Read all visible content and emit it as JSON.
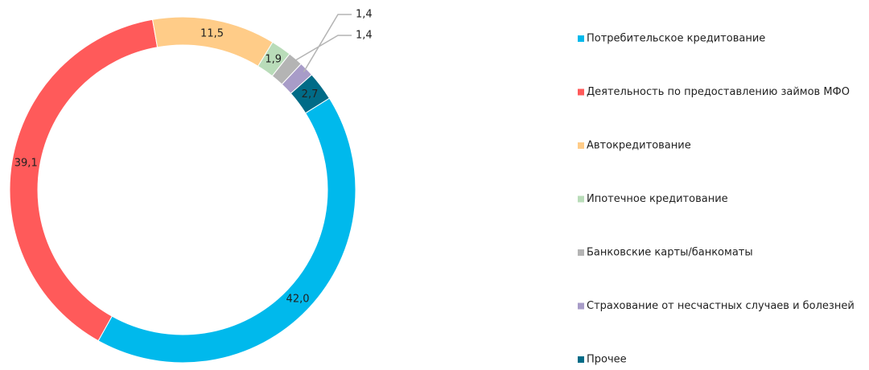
{
  "chart_data": {
    "type": "donut",
    "categories": [
      "Потребительское кредитование",
      "Деятельность по предоставлению займов МФО",
      "Автокредитование",
      "Ипотечное кредитование",
      "Банковские карты/банкоматы",
      "Страхование от несчастных случаев и болезней",
      "Прочее"
    ],
    "values": [
      42.0,
      39.1,
      11.5,
      1.9,
      1.4,
      1.4,
      2.7
    ],
    "value_labels": [
      "42,0",
      "39,1",
      "11,5",
      "1,9",
      "1,4",
      "1,4",
      "2,7"
    ],
    "colors": [
      "#00b9ec",
      "#ff5a5a",
      "#ffcc88",
      "#b9dcb9",
      "#b4b4b4",
      "#a89cc8",
      "#006b87"
    ],
    "legend": "right"
  }
}
